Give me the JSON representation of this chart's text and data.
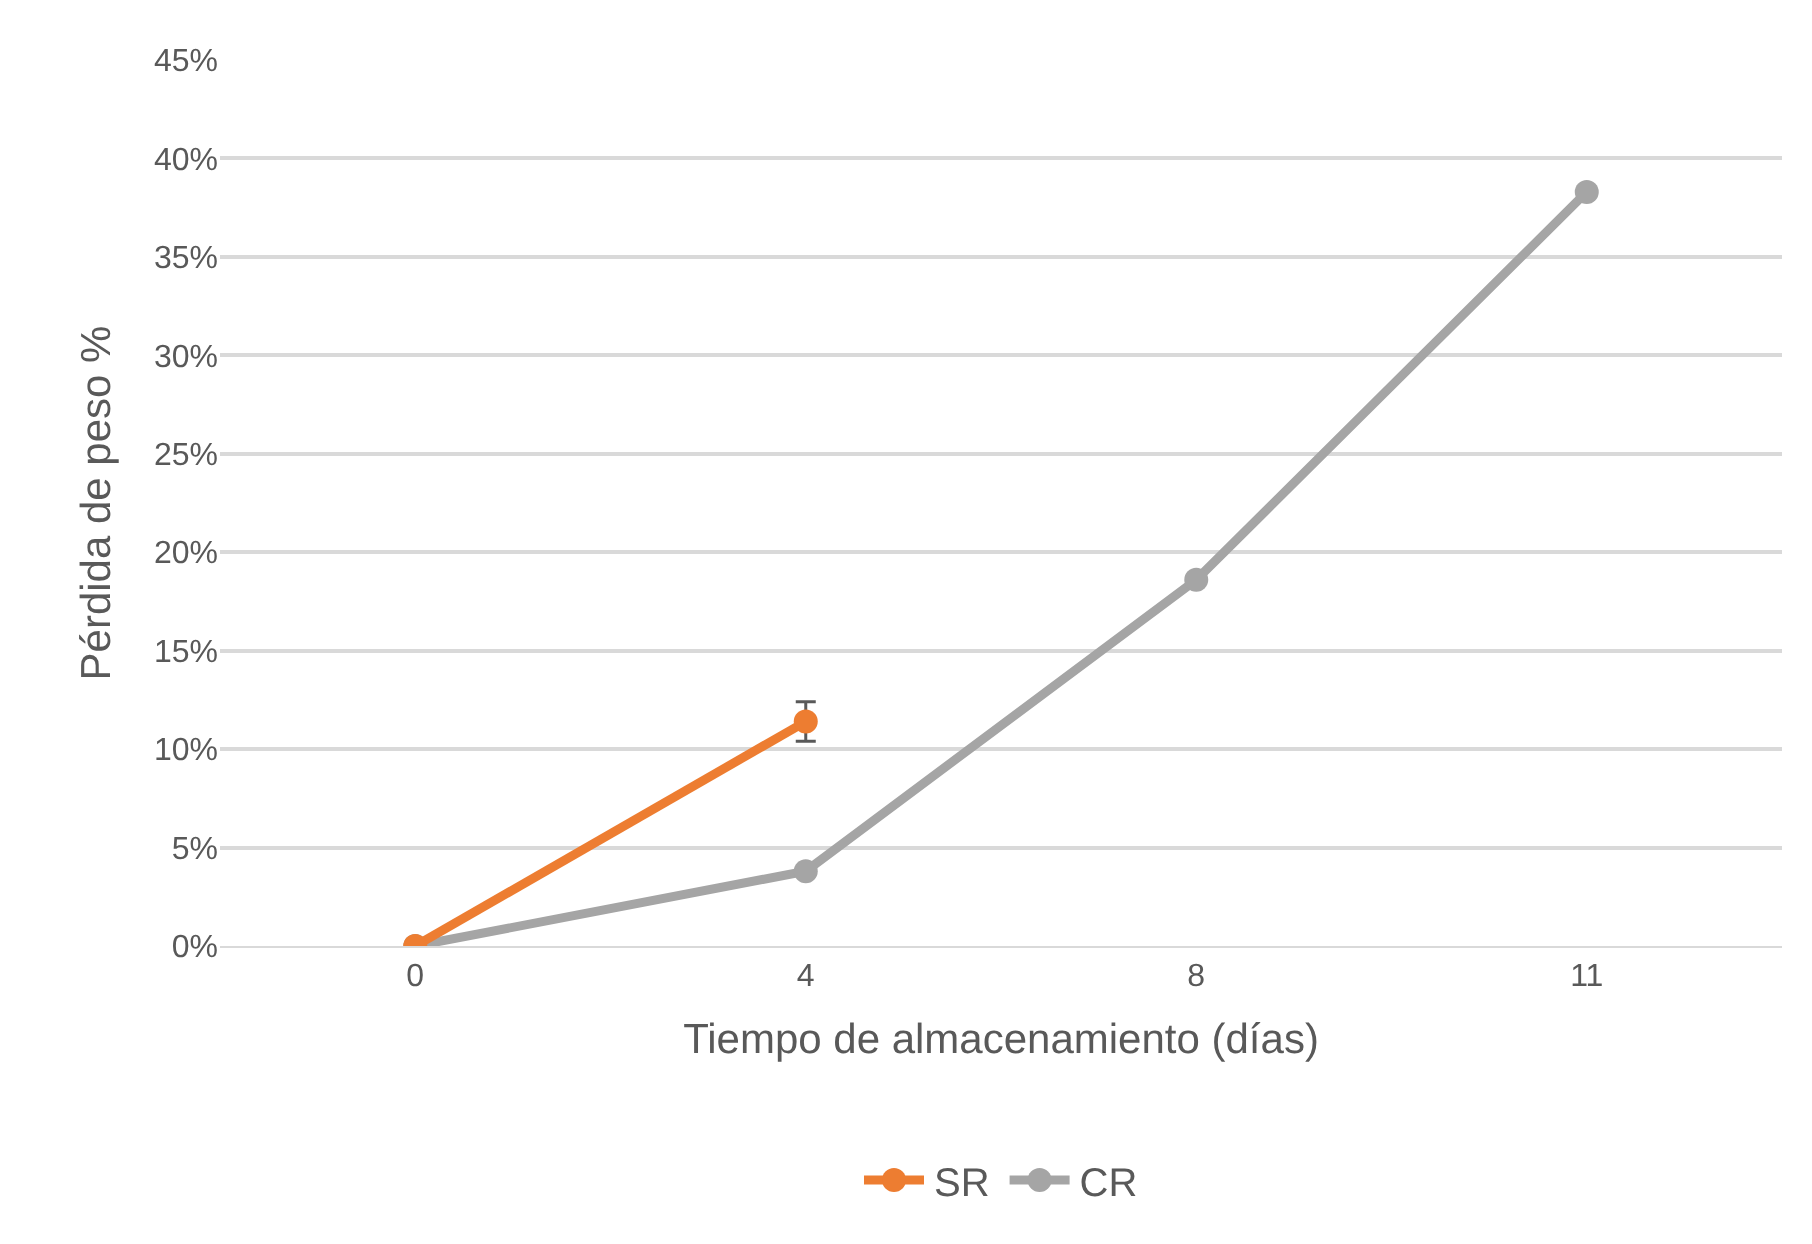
{
  "chart_data": {
    "type": "line",
    "xlabel": "Tiempo de almacenamiento (días)",
    "ylabel": "Pérdida de peso %",
    "categories": [
      "0",
      "4",
      "8",
      "11"
    ],
    "series": [
      {
        "name": "SR",
        "color": "#ed7d31",
        "values": [
          0,
          11.4,
          null,
          null
        ],
        "errors": [
          null,
          1.0,
          null,
          null
        ]
      },
      {
        "name": "CR",
        "color": "#a5a5a5",
        "values": [
          0,
          3.8,
          18.6,
          38.3
        ]
      }
    ],
    "ylim": [
      0,
      45
    ],
    "yticks": [
      {
        "value": 0,
        "label": "0%"
      },
      {
        "value": 5,
        "label": "5%"
      },
      {
        "value": 10,
        "label": "10%"
      },
      {
        "value": 15,
        "label": "15%"
      },
      {
        "value": 20,
        "label": "20%"
      },
      {
        "value": 25,
        "label": "25%"
      },
      {
        "value": 30,
        "label": "30%"
      },
      {
        "value": 35,
        "label": "35%"
      },
      {
        "value": 40,
        "label": "40%"
      },
      {
        "value": 45,
        "label": "45%"
      }
    ],
    "grid": "y",
    "legend": "bottom",
    "marker": "circle",
    "line_style": "solid"
  }
}
